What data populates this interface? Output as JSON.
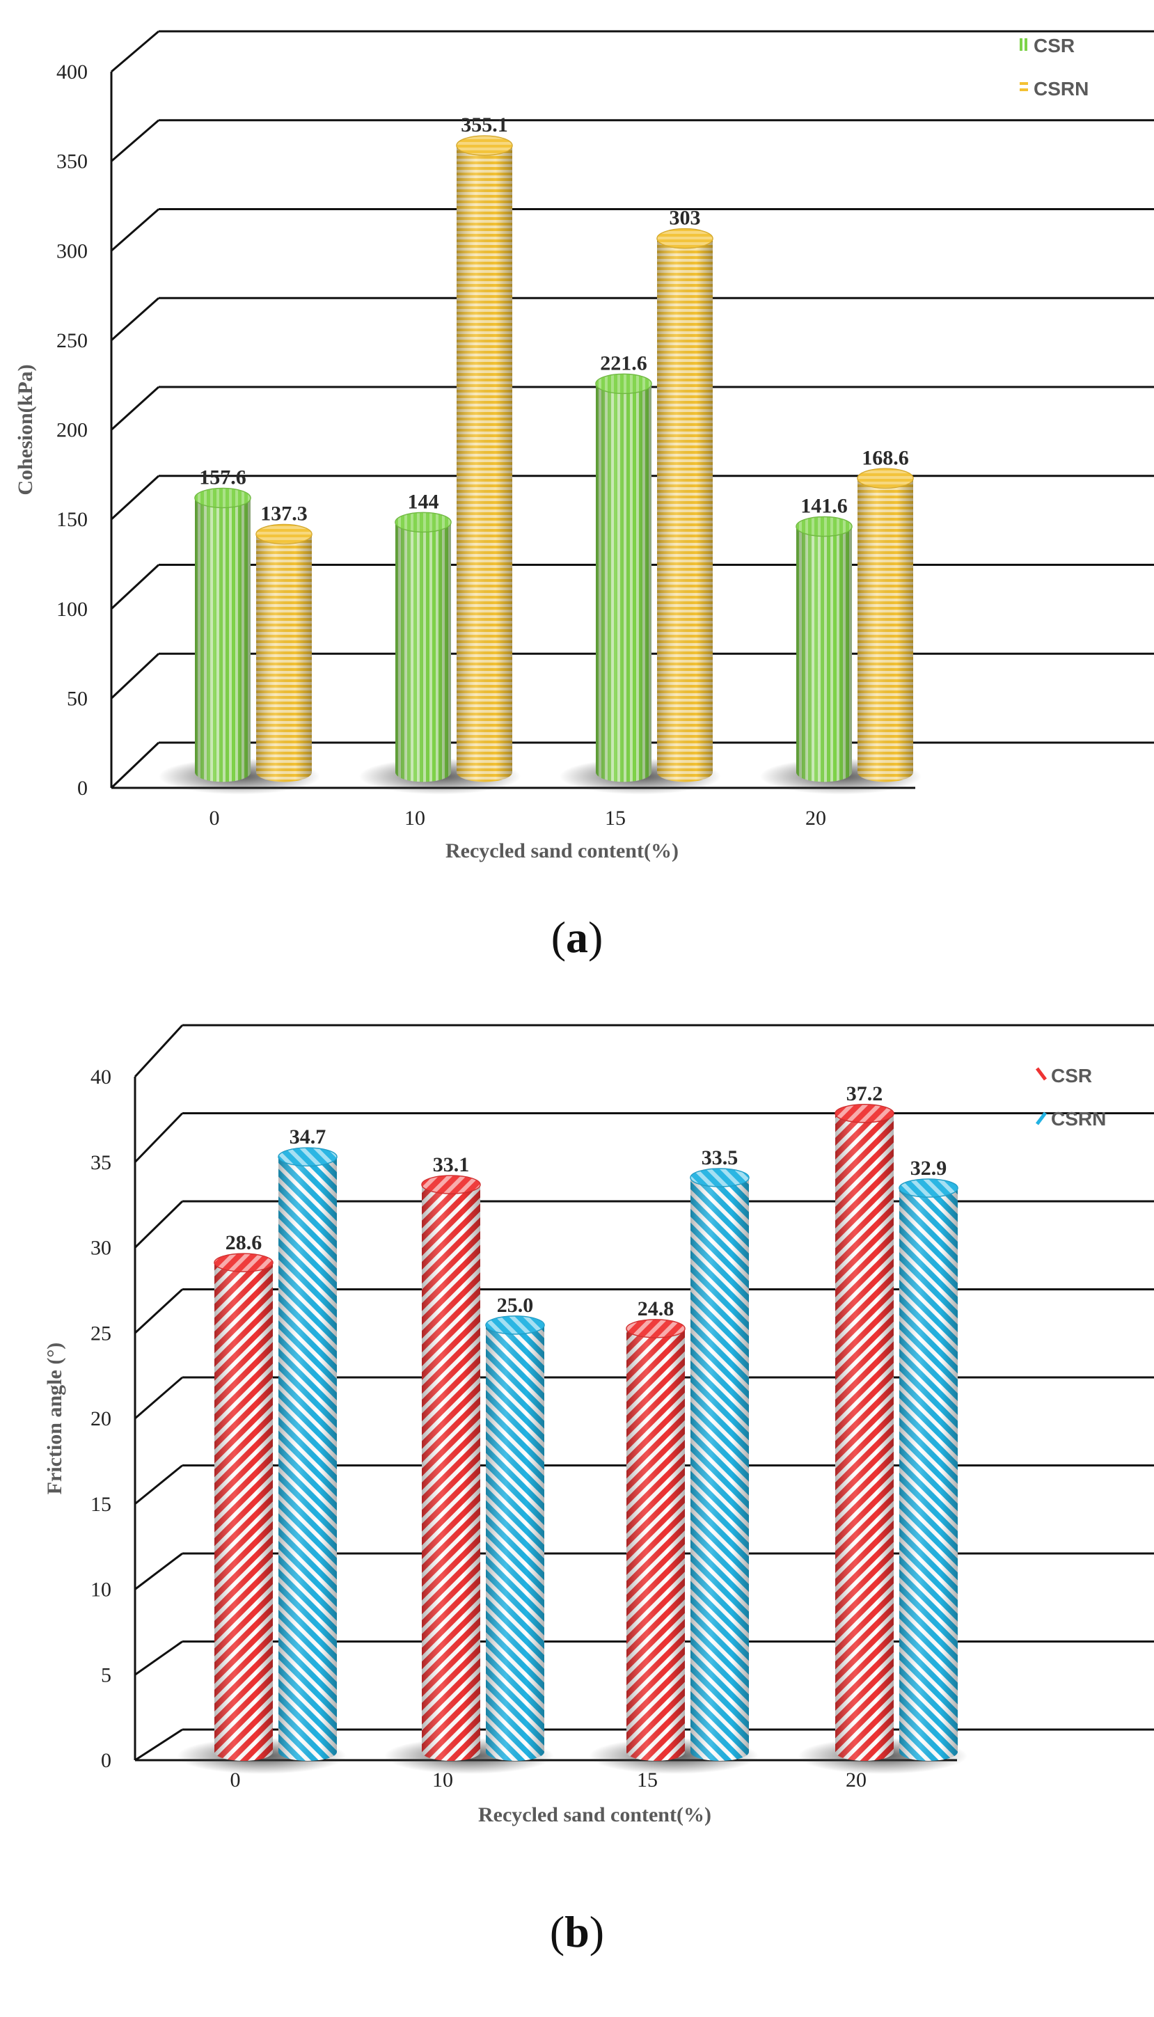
{
  "chart_data": [
    {
      "type": "bar",
      "panel_label": "a",
      "title": "",
      "xlabel": "Recycled sand content(%)",
      "ylabel": "Cohesion(kPa)",
      "ylim": [
        0,
        400
      ],
      "yticks": [
        0,
        50,
        100,
        150,
        200,
        250,
        300,
        350,
        400
      ],
      "categories": [
        "0",
        "10",
        "15",
        "20"
      ],
      "grid": true,
      "legend_position": "top-right",
      "series": [
        {
          "name": "CSR",
          "color": "#7ed348",
          "pattern": "vertical-stripes",
          "values": [
            157.6,
            144,
            221.6,
            141.6
          ],
          "labels": [
            "157.6",
            "144",
            "221.6",
            "141.6"
          ]
        },
        {
          "name": "CSRN",
          "color": "#f3c133",
          "pattern": "horizontal-stripes",
          "values": [
            137.3,
            355.1,
            303,
            168.6
          ],
          "labels": [
            "137.3",
            "355.1",
            "303",
            "168.6"
          ]
        }
      ]
    },
    {
      "type": "bar",
      "panel_label": "b",
      "title": "",
      "xlabel": "Recycled sand content(%)",
      "ylabel": "Friction angle (°)",
      "ylim": [
        0,
        40
      ],
      "yticks": [
        0,
        5,
        10,
        15,
        20,
        25,
        30,
        35,
        40
      ],
      "categories": [
        "0",
        "10",
        "15",
        "20"
      ],
      "grid": true,
      "legend_position": "top-right",
      "series": [
        {
          "name": "CSR",
          "color": "#ee3333",
          "pattern": "diagonal-stripes-down",
          "values": [
            28.6,
            33.1,
            24.8,
            37.2
          ],
          "labels": [
            "28.6",
            "33.1",
            "24.8",
            "37.2"
          ]
        },
        {
          "name": "CSRN",
          "color": "#22b2e2",
          "pattern": "diagonal-stripes-up",
          "values": [
            34.7,
            25.0,
            33.5,
            32.9
          ],
          "labels": [
            "34.7",
            "25.0",
            "33.5",
            "32.9"
          ]
        }
      ]
    }
  ]
}
